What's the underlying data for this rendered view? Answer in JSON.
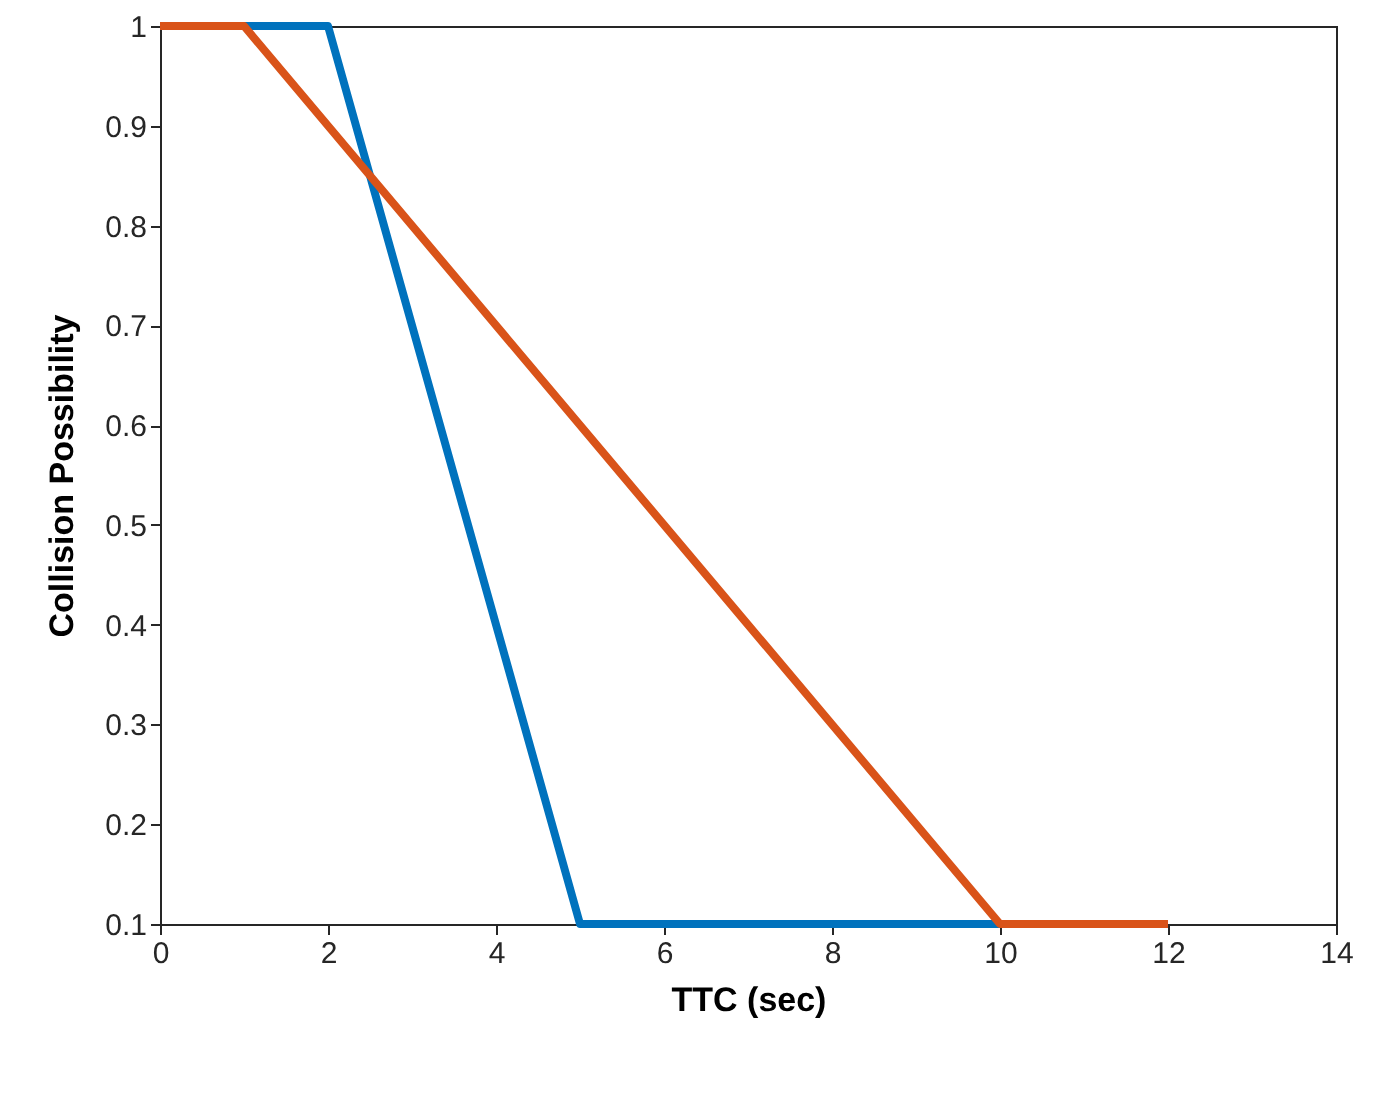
{
  "chart_data": {
    "type": "line",
    "xlabel": "TTC (sec)",
    "ylabel": "Collision Possibility",
    "xlim": [
      0,
      14
    ],
    "xticks": [
      0,
      2,
      4,
      6,
      8,
      10,
      12,
      14
    ],
    "ylim": [
      0.1,
      1
    ],
    "yticks": [
      0.1,
      0.2,
      0.3,
      0.4,
      0.5,
      0.6,
      0.7,
      0.8,
      0.9,
      1
    ],
    "grid": false,
    "marker": "none",
    "line_style": "solid",
    "series": [
      {
        "color": "#0072bd",
        "x": [
          0,
          2,
          5,
          10
        ],
        "values": [
          1,
          1,
          0.1,
          0.1
        ]
      },
      {
        "color": "#d95319",
        "x": [
          0,
          1,
          10,
          12
        ],
        "values": [
          1,
          1,
          0.1,
          0.1
        ]
      }
    ]
  }
}
